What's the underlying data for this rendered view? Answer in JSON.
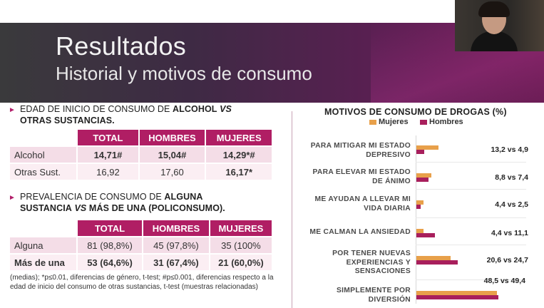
{
  "slide": {
    "title": "Resultados",
    "subtitle": "Historial y motivos de consumo",
    "section1": {
      "heading_part1": "EDAD DE INICIO DE CONSUMO DE ",
      "heading_bold1": "ALCOHOL",
      "heading_italic": " VS",
      "heading_bold2": "OTRAS SUSTANCIAS.",
      "columns": [
        "TOTAL",
        "HOMBRES",
        "MUJERES"
      ],
      "rows": [
        {
          "label": "Alcohol",
          "values": [
            "14,71#",
            "15,04#",
            "14,29*#"
          ]
        },
        {
          "label": "Otras Sust.",
          "values": [
            "16,92",
            "17,60",
            "16,17*"
          ]
        }
      ]
    },
    "section2": {
      "heading_part1": "PREVALENCIA DE CONSUMO DE ",
      "heading_bold1": "ALGUNA",
      "heading_bold2": "SUSTANCIA",
      "heading_italic": " VS",
      "heading_bold3": " MÁS DE UNA (POLICONSUMO).",
      "columns": [
        "TOTAL",
        "HOMBRES",
        "MUJERES"
      ],
      "rows": [
        {
          "label": "Alguna",
          "values": [
            "81 (98,8%)",
            "45 (97,8%)",
            "35 (100%"
          ]
        },
        {
          "label": "Más de una",
          "values": [
            "53 (64,6%)",
            "31 (67,4%)",
            "21 (60,0%)"
          ]
        }
      ]
    },
    "footnote": "(medias); *p≤0.01, diferencias de género, t-test; #p≤0.001, diferencias respecto a la edad de inicio del consumo de otras sustancias, t-test (muestras relacionadas)"
  },
  "colors": {
    "accent": "#b01e64",
    "women": "#e8a04a",
    "men": "#a81f5c"
  },
  "chart_data": {
    "type": "bar",
    "title": "MOTIVOS DE CONSUMO DE DROGAS (%)",
    "categories": [
      "PARA MITIGAR MI ESTADO DEPRESIVO",
      "PARA ELEVAR MI ESTADO DE ÁNIMO",
      "ME AYUDAN A LLEVAR MI VIDA DIARIA",
      "ME CALMAN LA ANSIEDAD",
      "POR TENER NUEVAS EXPERIENCIAS Y SENSACIONES",
      "SIMPLEMENTE POR DIVERSIÓN"
    ],
    "series": [
      {
        "name": "Mujeres",
        "values": [
          13.2,
          8.8,
          4.4,
          4.4,
          20.6,
          48.5
        ]
      },
      {
        "name": "Hombres",
        "values": [
          4.9,
          7.4,
          2.5,
          11.1,
          24.7,
          49.4
        ]
      }
    ],
    "data_labels": [
      "13,2 vs 4,9",
      "8,8 vs 7,4",
      "4,4 vs 2,5",
      "4,4 vs 11,1",
      "20,6 vs 24,7",
      "48,5 vs 49,4"
    ],
    "orientation": "horizontal",
    "legend": "top-left",
    "xlim": [
      0,
      60
    ]
  }
}
